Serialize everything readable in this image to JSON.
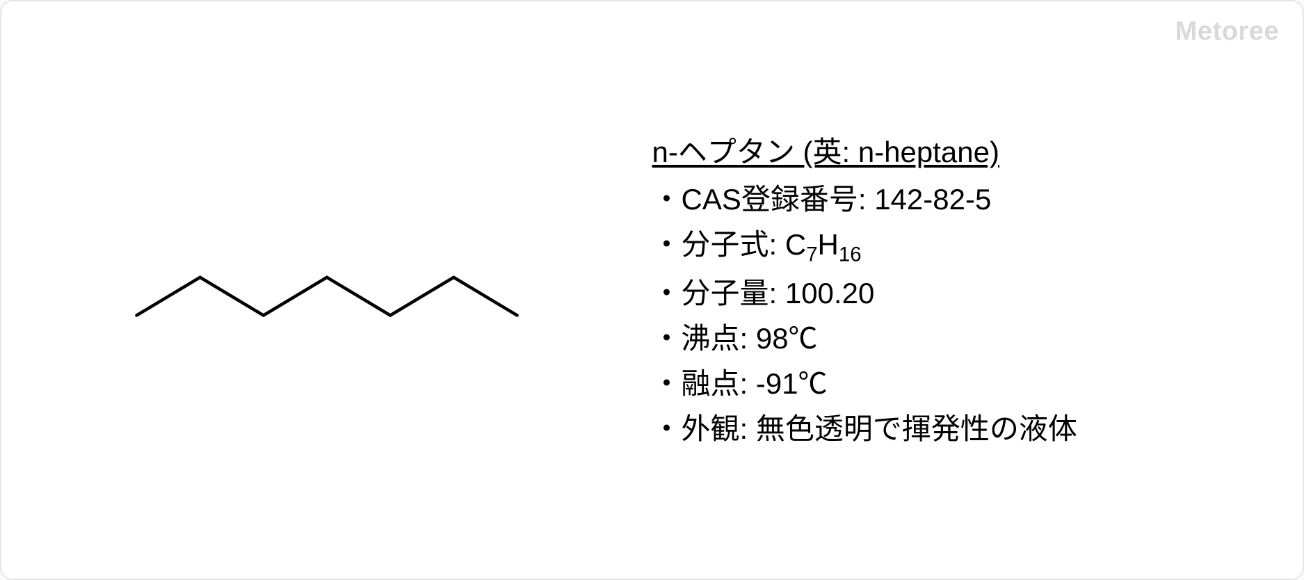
{
  "watermark": "Metoree",
  "molecule": {
    "name": "n-heptane",
    "structure": {
      "type": "skeletal",
      "stroke_color": "#000000",
      "stroke_width": 5,
      "points": [
        [
          40,
          140
        ],
        [
          140,
          80
        ],
        [
          240,
          140
        ],
        [
          340,
          80
        ],
        [
          440,
          140
        ],
        [
          540,
          80
        ],
        [
          640,
          140
        ]
      ]
    }
  },
  "info": {
    "title": "n-ヘプタン (英: n-heptane)",
    "cas_label": "・CAS登録番号: ",
    "cas_value": "142-82-5",
    "formula_label": "・分子式: ",
    "formula_base1": "C",
    "formula_sub1": "7",
    "formula_base2": "H",
    "formula_sub2": "16",
    "mw_label": "・分子量: ",
    "mw_value": "100.20",
    "bp_label": "・沸点: ",
    "bp_value": "98℃",
    "mp_label": "・融点: ",
    "mp_value": "-91℃",
    "appearance_label": "・外観: ",
    "appearance_value": "無色透明で揮発性の液体"
  },
  "style": {
    "card_bg": "#ffffff",
    "card_border": "#e5e5e5",
    "text_color": "#000000",
    "watermark_color": "#d9d9d9",
    "title_fontsize": 42,
    "prop_fontsize": 42
  }
}
